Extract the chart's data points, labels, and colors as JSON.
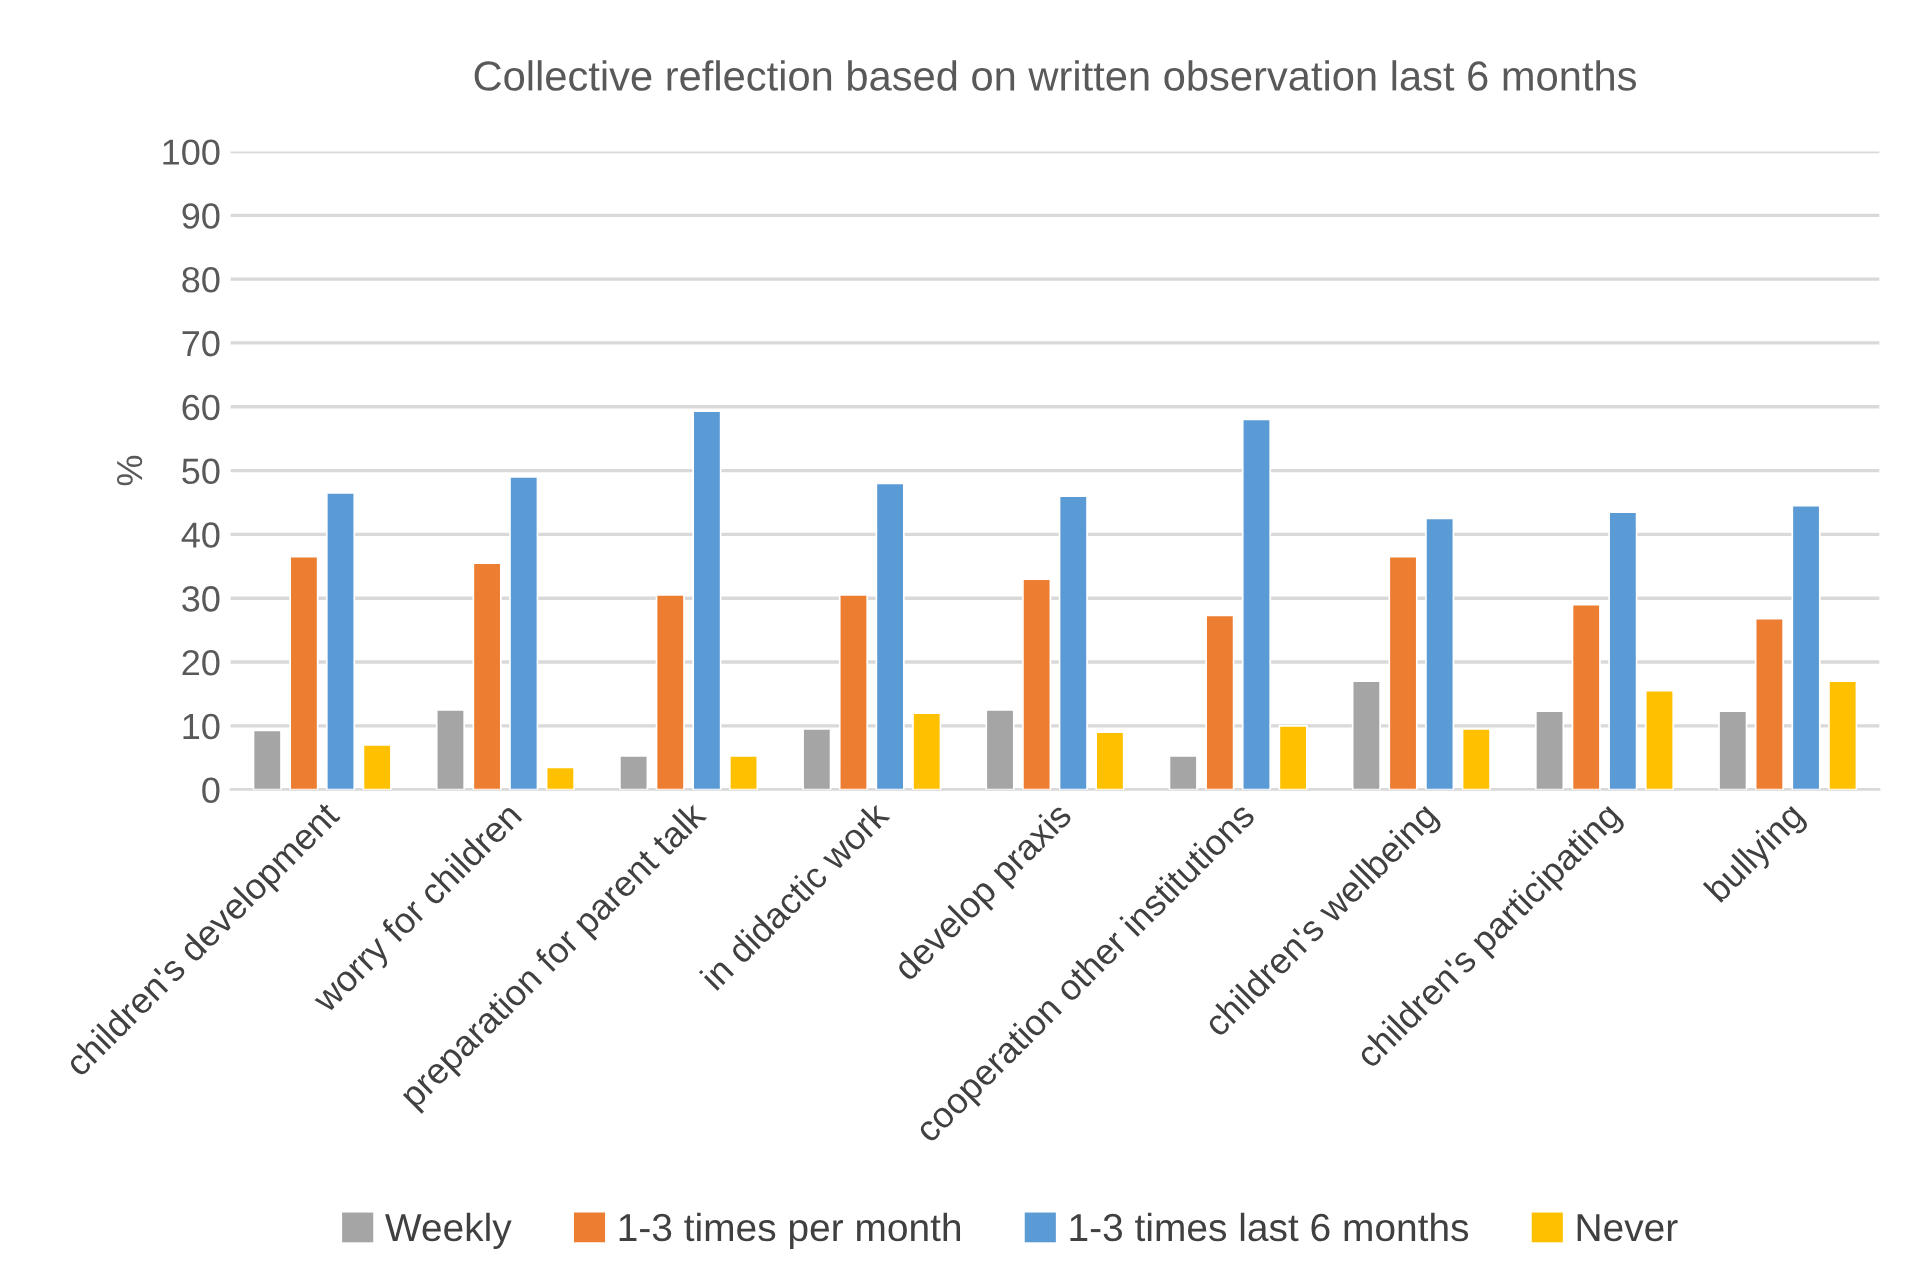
{
  "chart_data": {
    "type": "bar",
    "title": "Collective reflection based on written observation last 6 months",
    "ylabel": "%",
    "categories": [
      "children's development",
      "worry for children",
      "preparation for parent talk",
      "in didactic work",
      "develop praxis",
      "cooperation other institutions",
      "children's wellbeing",
      "children's participating",
      "bullying"
    ],
    "series": [
      {
        "name": "Weekly",
        "color": "#a5a5a5",
        "values": [
          9.3,
          12.5,
          5.3,
          9.5,
          12.5,
          5.3,
          17,
          12.3,
          12.3
        ]
      },
      {
        "name": "1-3 times per month",
        "color": "#ed7d31",
        "values": [
          36.5,
          35.5,
          30.5,
          30.5,
          33,
          27.3,
          36.5,
          29,
          26.8
        ]
      },
      {
        "name": "1-3 times last 6 months",
        "color": "#5b9bd5",
        "values": [
          46.5,
          49,
          59.3,
          48,
          46,
          58,
          42.5,
          43.5,
          44.5
        ]
      },
      {
        "name": "Never",
        "color": "#ffc000",
        "values": [
          7,
          3.5,
          5.3,
          12,
          9,
          10,
          9.5,
          15.5,
          17
        ]
      }
    ],
    "ylim": [
      0,
      100
    ],
    "yticks": [
      0,
      10,
      20,
      30,
      40,
      50,
      60,
      70,
      80,
      90,
      100
    ],
    "grid": "y",
    "legend": "bottom"
  }
}
